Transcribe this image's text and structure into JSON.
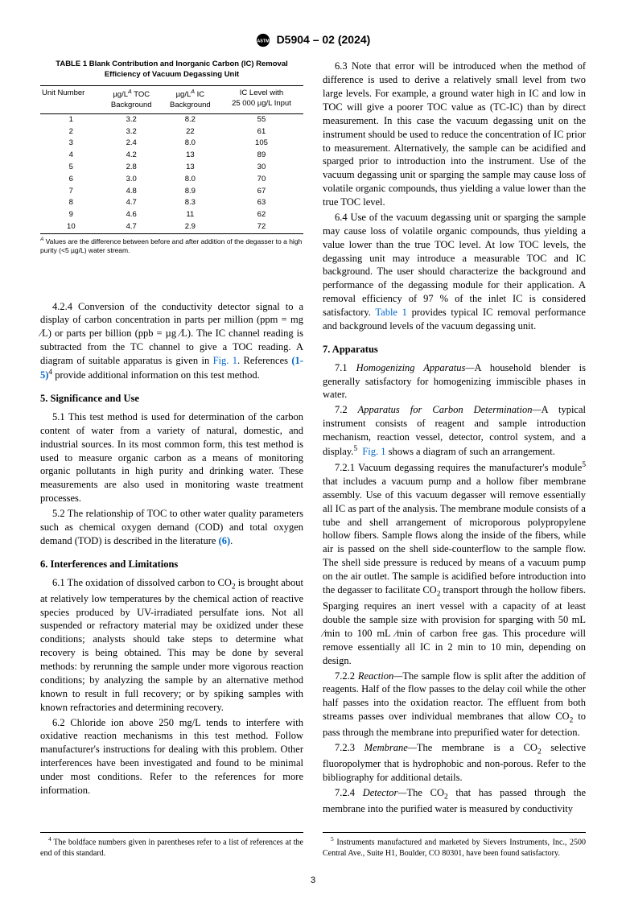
{
  "doc_header": "D5904 – 02 (2024)",
  "table": {
    "title": "TABLE 1 Blank Contribution and Inorganic Carbon (IC) Removal Efficiency of Vacuum Degassing Unit",
    "headers": {
      "c1": "Unit Number",
      "c2_l1": "µg/L",
      "c2_sup": "A",
      "c2_l2": " TOC",
      "c2_l3": "Background",
      "c3_l1": "µg/L",
      "c3_sup": "A",
      "c3_l2": " IC",
      "c3_l3": "Background",
      "c4_l1": "IC Level with",
      "c4_l2": "25 000 µg/L Input"
    },
    "rows": [
      [
        "1",
        "3.2",
        "8.2",
        "55"
      ],
      [
        "2",
        "3.2",
        "22",
        "61"
      ],
      [
        "3",
        "2.4",
        "8.0",
        "105"
      ],
      [
        "4",
        "4.2",
        "13",
        "89"
      ],
      [
        "5",
        "2.8",
        "13",
        "30"
      ],
      [
        "6",
        "3.0",
        "8.0",
        "70"
      ],
      [
        "7",
        "4.8",
        "8.9",
        "67"
      ],
      [
        "8",
        "4.7",
        "8.3",
        "63"
      ],
      [
        "9",
        "4.6",
        "11",
        "62"
      ],
      [
        "10",
        "4.7",
        "2.9",
        "72"
      ]
    ],
    "note_sup": "A",
    "note": " Values are the difference between before and after addition of the degasser to a high purity (<5 µg/L) water stream."
  },
  "p424a": "4.2.4 Conversion of the conductivity detector signal to a display of carbon concentration in parts per million (ppm = mg ⁄L) or parts per billion (ppb = µg ⁄L). The IC channel reading is subtracted from the TC channel to give a TOC reading. A diagram of suitable apparatus is given in ",
  "p424_fig": "Fig. 1",
  "p424b": ". References ",
  "p424_refs": "(1-5)",
  "p424_sup": "4",
  "p424c": " provide additional information on this test method.",
  "s5": "5. Significance and Use",
  "p51": "5.1 This test method is used for determination of the carbon content of water from a variety of natural, domestic, and industrial sources. In its most common form, this test method is used to measure organic carbon as a means of monitoring organic pollutants in high purity and drinking water. These measurements are also used in monitoring waste treatment processes.",
  "p52a": "5.2 The relationship of TOC to other water quality parameters such as chemical oxygen demand (COD) and total oxygen demand (TOD) is described in the literature ",
  "p52_ref": "(6)",
  "p52b": ".",
  "s6": "6. Interferences and Limitations",
  "p61a": "6.1 The oxidation of dissolved carbon to CO",
  "p61_sub": "2",
  "p61b": " is brought about at relatively low temperatures by the chemical action of reactive species produced by UV-irradiated persulfate ions. Not all suspended or refractory material may be oxidized under these conditions; analysts should take steps to determine what recovery is being obtained. This may be done by several methods: by rerunning the sample under more vigorous reaction conditions; by analyzing the sample by an alternative method known to result in full recovery; or by spiking samples with known refractories and determining recovery.",
  "p62": "6.2 Chloride ion above 250 mg/L tends to interfere with oxidative reaction mechanisms in this test method. Follow manufacturer's instructions for dealing with this problem. Other interferences have been investigated and found to be minimal under most conditions. Refer to the references for more information.",
  "p63": "6.3 Note that error will be introduced when the method of difference is used to derive a relatively small level from two large levels. For example, a ground water high in IC and low in TOC will give a poorer TOC value as (TC-IC) than by direct measurement. In this case the vacuum degassing unit on the instrument should be used to reduce the concentration of IC prior to measurement. Alternatively, the sample can be acidified and sparged prior to introduction into the instrument. Use of the vacuum degassing unit or sparging the sample may cause loss of volatile organic compounds, thus yielding a value lower than the true TOC level.",
  "p64a": "6.4 Use of the vacuum degassing unit or sparging the sample may cause loss of volatile organic compounds, thus yielding a value lower than the true TOC level. At low TOC levels, the degassing unit may introduce a measurable TOC and IC background. The user should characterize the background and performance of the degassing module for their application. A removal efficiency of 97 % of the inlet IC is considered satisfactory. ",
  "p64_tab": "Table 1",
  "p64b": " provides typical IC removal performance and background levels of the vacuum degassing unit.",
  "s7": "7. Apparatus",
  "p71a": "7.1 ",
  "p71_it": "Homogenizing Apparatus—",
  "p71b": "A household blender is generally satisfactory for homogenizing immiscible phases in water.",
  "p72a": "7.2 ",
  "p72_it": "Apparatus for Carbon Determination—",
  "p72b": "A typical instrument consists of reagent and sample introduction mechanism, reaction vessel, detector, control system, and a display.",
  "p72_sup": "5",
  "p72_fig": "Fig. 1",
  "p72c": " shows a diagram of such an arrangement.",
  "p721a": "7.2.1 Vacuum degassing requires the manufacturer's module",
  "p721_sup": "5",
  "p721b": " that includes a vacuum pump and a hollow fiber membrane assembly. Use of this vacuum degasser will remove essentially all IC as part of the analysis. The membrane module consists of a tube and shell arrangement of microporous polypropylene hollow fibers. Sample flows along the inside of the fibers, while air is passed on the shell side-counterflow to the sample flow. The shell side pressure is reduced by means of a vacuum pump on the air outlet. The sample is acidified before introduction into the degasser to facilitate CO",
  "p721_sub": "2",
  "p721c": " transport through the hollow fibers. Sparging requires an inert vessel with a capacity of at least double the sample size with provision for sparging with 50 mL ⁄min to 100 mL ⁄min of carbon free gas. This procedure will remove essentially all IC in 2 min to 10 min, depending on design.",
  "p722a": "7.2.2 ",
  "p722_it": "Reaction—",
  "p722b": "The sample flow is split after the addition of reagents. Half of the flow passes to the delay coil while the other half passes into the oxidation reactor. The effluent from both streams passes over individual membranes that allow CO",
  "p722_sub": "2",
  "p722c": " to pass through the membrane into prepurified water for detection.",
  "p723a": "7.2.3 ",
  "p723_it": "Membrane—",
  "p723b": "The membrane is a CO",
  "p723_sub": "2",
  "p723c": " selective fluoropolymer that is hydrophobic and non-porous. Refer to the bibliography for additional details.",
  "p724a": "7.2.4 ",
  "p724_it": "Detector—",
  "p724b": "The CO",
  "p724_sub": "2",
  "p724c": " that has passed through the membrane into the purified water is measured by conductivity",
  "fn4_sup": "4",
  "fn4": " The boldface numbers given in parentheses refer to a list of references at the end of this standard.",
  "fn5_sup": "5",
  "fn5": " Instruments manufactured and marketed by Sievers Instruments, Inc., 2500 Central Ave., Suite H1, Boulder, CO 80301, have been found satisfactory.",
  "pagenum": "3"
}
